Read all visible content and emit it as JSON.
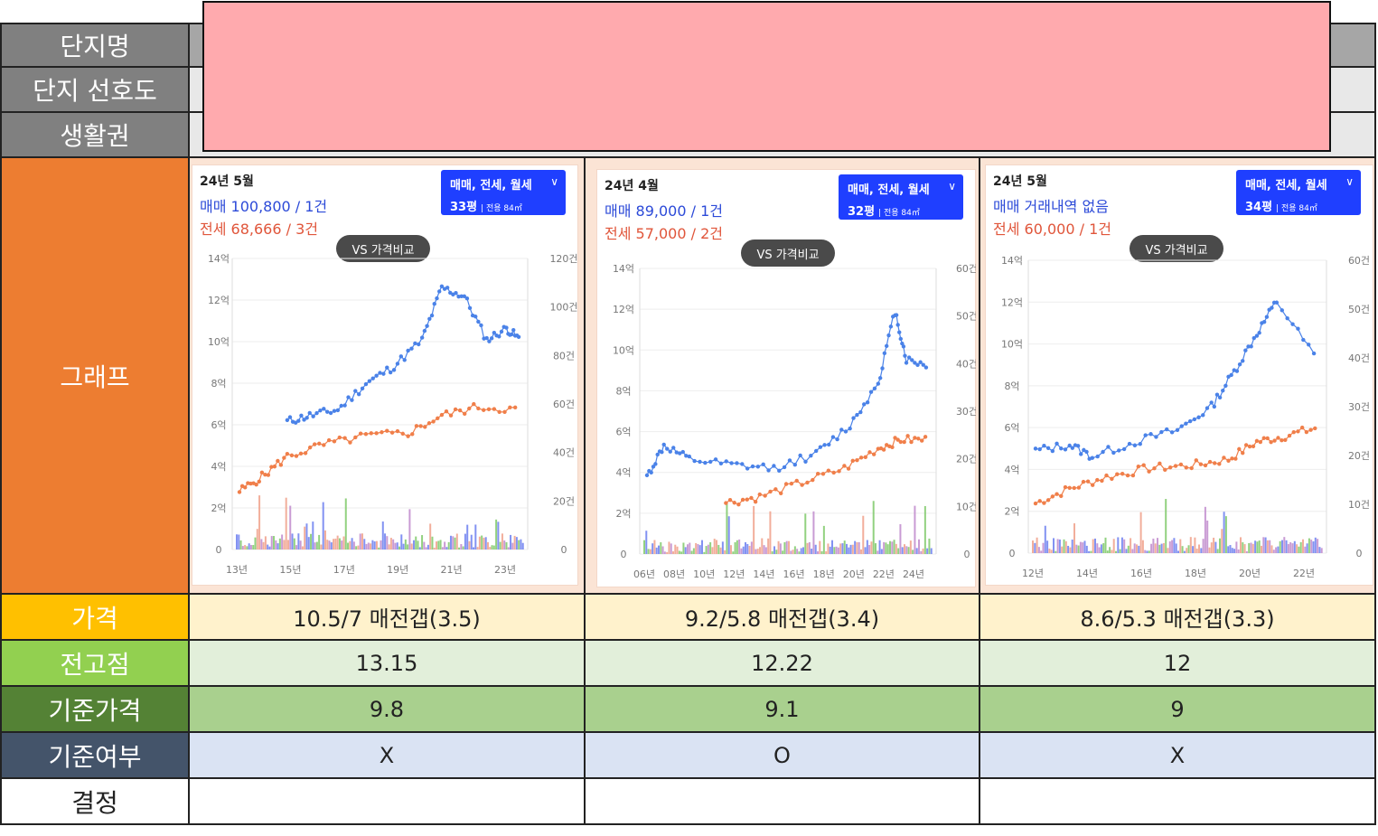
{
  "rows": {
    "complex_name": "단지명",
    "preference": "단지 선호도",
    "living_area": "생활권",
    "graph": "그래프",
    "price": "가격",
    "high_point": "전고점",
    "base_price": "기준가격",
    "base_check": "기준여부",
    "decision": "결정"
  },
  "colors": {
    "header_gray": "#808080",
    "graph_orange": "#ed7d31",
    "price_yellow": "#ffc000",
    "high_green": "#92d050",
    "base_green": "#548235",
    "check_navy": "#44546a",
    "redact_pink": "#ffaaae",
    "sale_blue": "#2c4ad8",
    "rent_orange": "#e0553a"
  },
  "columns": [
    {
      "price": "10.5/7 매전갭(3.5)",
      "high_point": "13.15",
      "base_price": "9.8",
      "base_check": "X",
      "decision": "",
      "card": {
        "date": "24년 5월",
        "sale": "매매 100,800 / 1건",
        "rent": "전세 68,666 / 3건",
        "pill_line1": "매매, 전세, 월세",
        "pill_line2": "33평",
        "pill_area": "| 전용 84㎡",
        "vs": "VS 가격비교",
        "left_ticks": [
          "14억",
          "12억",
          "10억",
          "8억",
          "6억",
          "4억",
          "2억",
          "0"
        ],
        "right_ticks": [
          "120건",
          "100건",
          "80건",
          "60건",
          "40건",
          "20건",
          "0"
        ],
        "x_ticks": [
          "13년",
          "15년",
          "17년",
          "19년",
          "21년",
          "23년"
        ]
      }
    },
    {
      "price": "9.2/5.8 매전갭(3.4)",
      "high_point": "12.22",
      "base_price": "9.1",
      "base_check": "O",
      "decision": "",
      "card": {
        "date": "24년 4월",
        "sale": "매매 89,000 / 1건",
        "rent": "전세 57,000 / 2건",
        "pill_line1": "매매, 전세, 월세",
        "pill_line2": "32평",
        "pill_area": "| 전용 84㎡",
        "vs": "VS 가격비교",
        "left_ticks": [
          "14억",
          "12억",
          "10억",
          "8억",
          "6억",
          "4억",
          "2억",
          "0"
        ],
        "right_ticks": [
          "60건",
          "50건",
          "40건",
          "30건",
          "20건",
          "10건",
          "0"
        ],
        "x_ticks": [
          "06년",
          "08년",
          "10년",
          "12년",
          "14년",
          "16년",
          "18년",
          "20년",
          "22년",
          "24년"
        ]
      }
    },
    {
      "price": "8.6/5.3 매전갭(3.3)",
      "high_point": "12",
      "base_price": "9",
      "base_check": "X",
      "decision": "",
      "card": {
        "date": "24년 5월",
        "sale": "매매 거래내역 없음",
        "rent": "전세 60,000 / 1건",
        "pill_line1": "매매, 전세, 월세",
        "pill_line2": "34평",
        "pill_area": "| 전용 84㎡",
        "vs": "VS 가격비교",
        "left_ticks": [
          "14억",
          "12억",
          "10억",
          "8억",
          "6억",
          "4억",
          "2억",
          "0"
        ],
        "right_ticks": [
          "60건",
          "50건",
          "40건",
          "30건",
          "20건",
          "10건",
          "0"
        ],
        "x_ticks": [
          "12년",
          "14년",
          "16년",
          "18년",
          "20년",
          "22년"
        ]
      }
    }
  ]
}
